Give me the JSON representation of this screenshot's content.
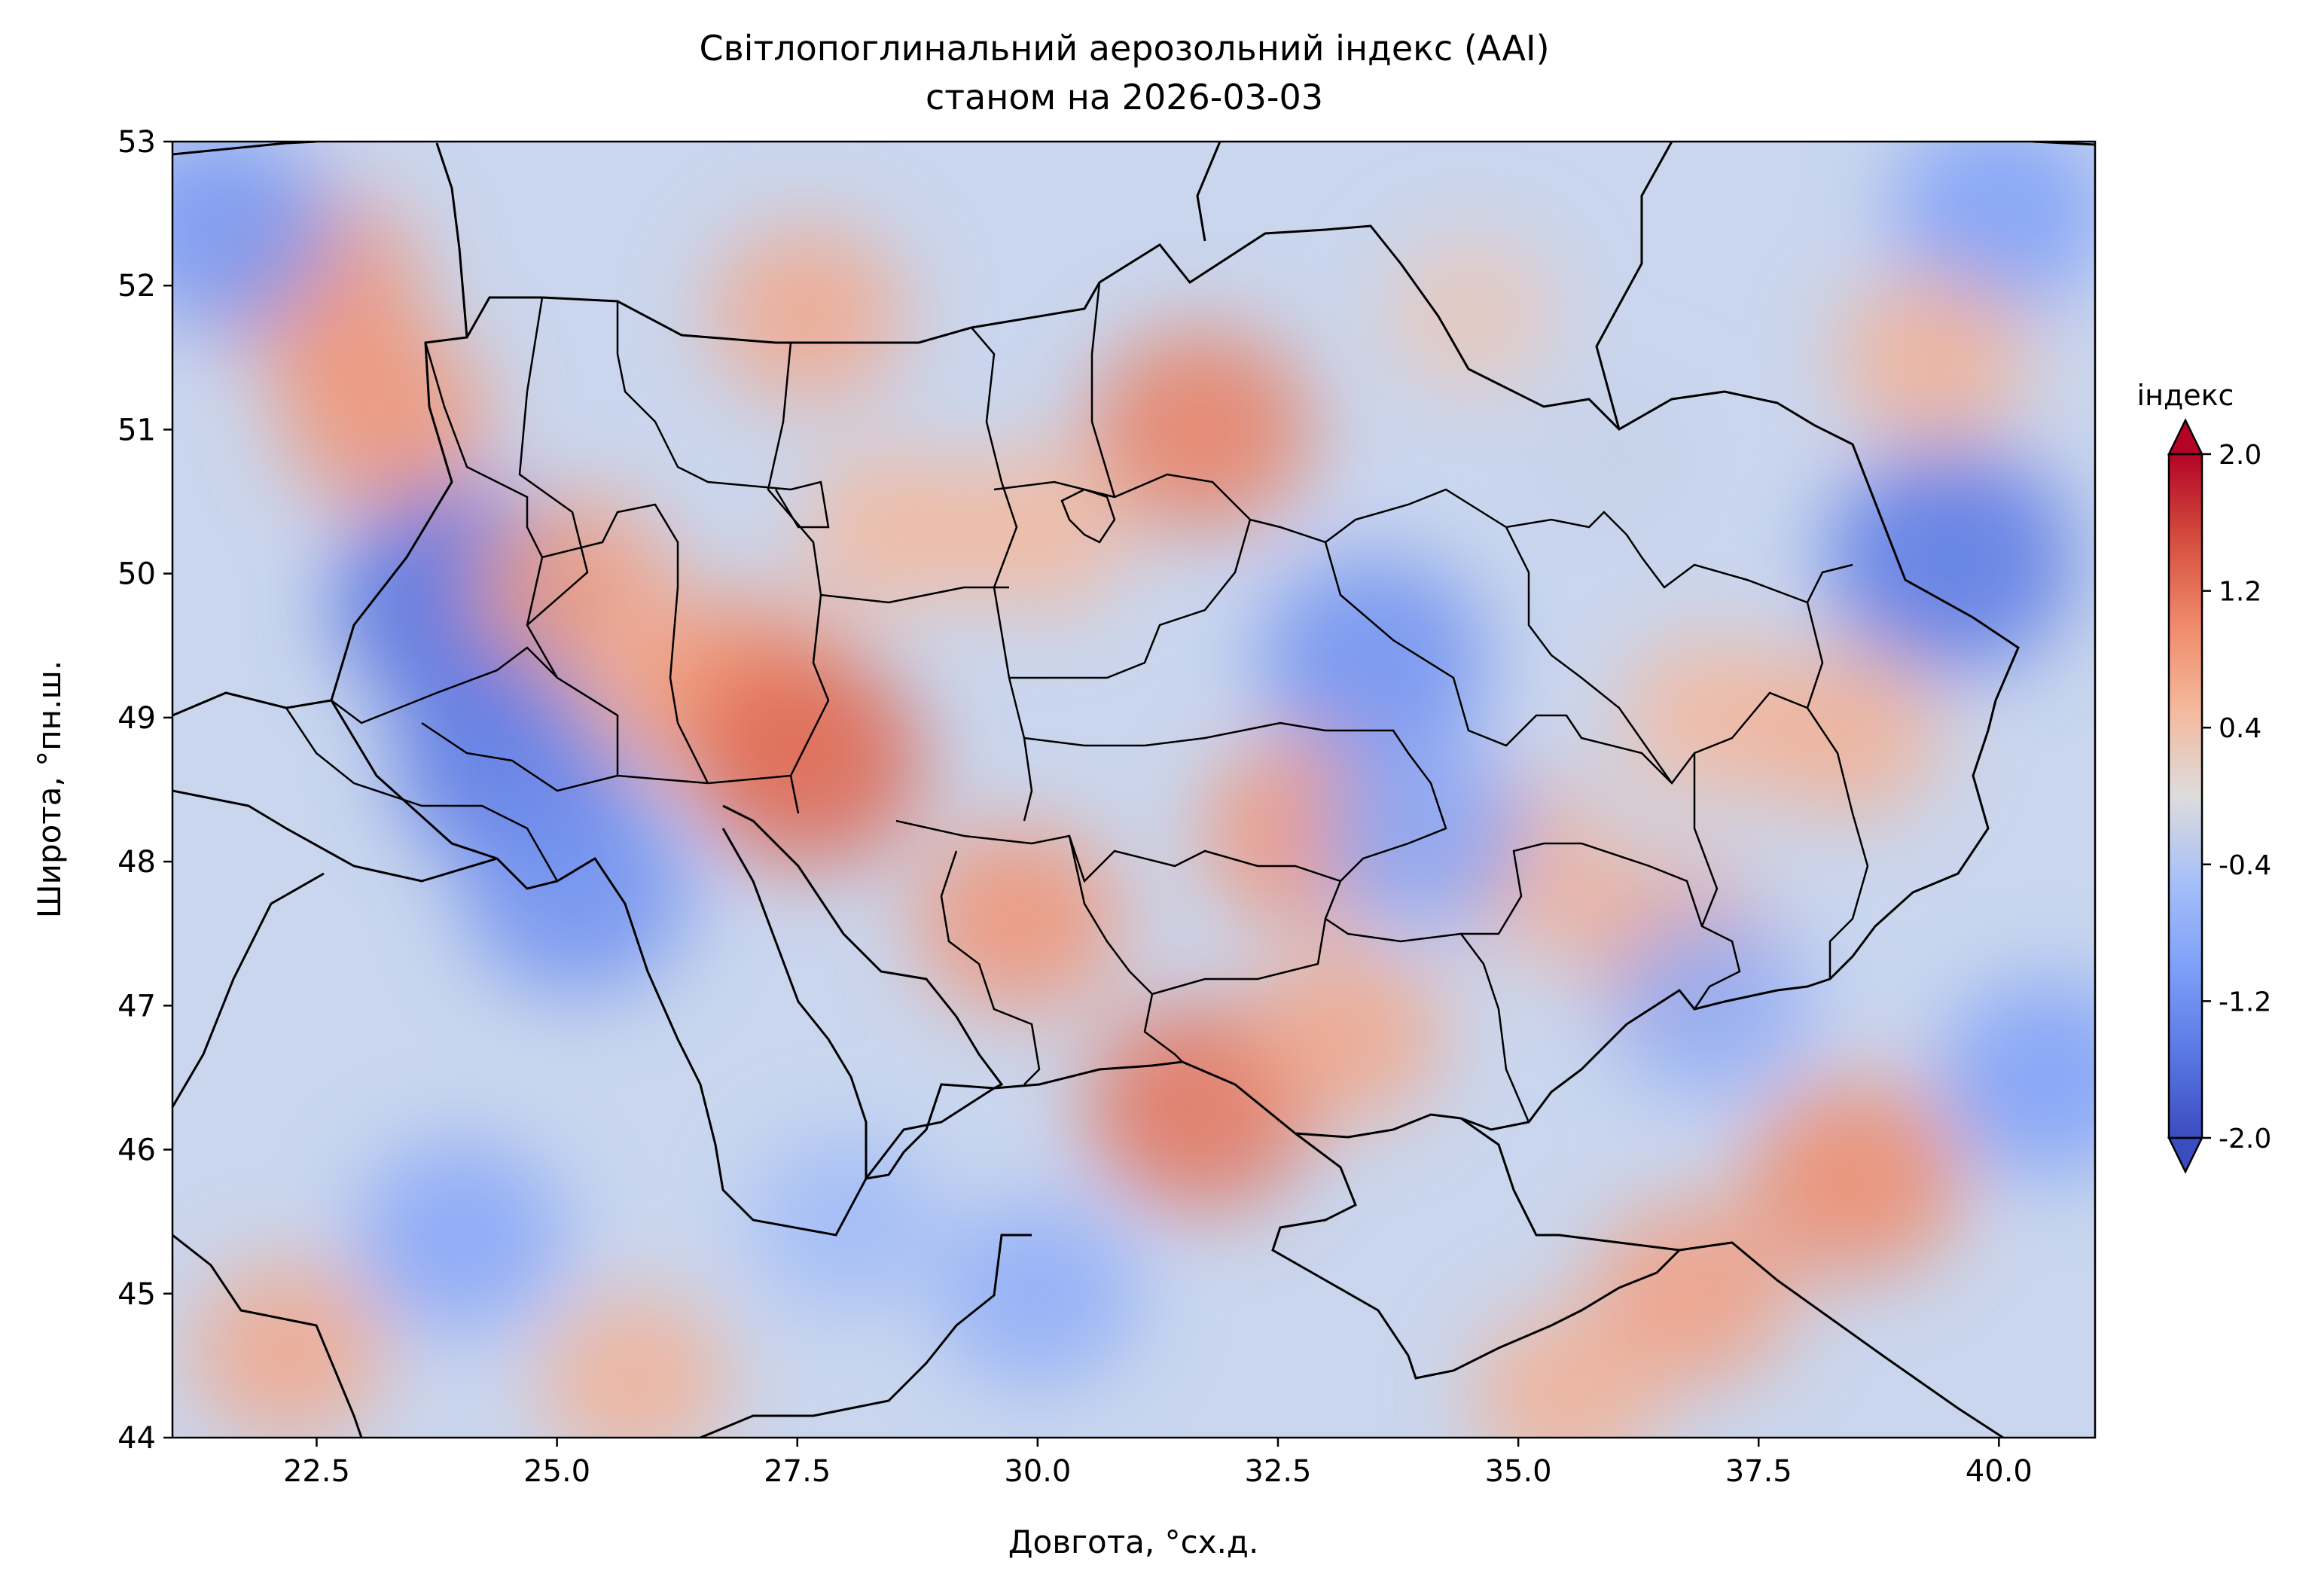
{
  "chart_data": {
    "type": "heatmap",
    "title": "Світлопоглинальний аерозольний індекс (AAI)",
    "subtitle": "станом на 2026-03-03",
    "xlabel": "Довгота, °сх.д.",
    "ylabel": "Широта, °пн.ш.",
    "xlim": [
      21.0,
      41.0
    ],
    "ylim": [
      44.0,
      53.0
    ],
    "x_ticks": [
      "22.5",
      "25.0",
      "27.5",
      "30.0",
      "32.5",
      "35.0",
      "37.5",
      "40.0"
    ],
    "y_ticks": [
      "44",
      "45",
      "46",
      "47",
      "48",
      "49",
      "50",
      "51",
      "52",
      "53"
    ],
    "colorbar": {
      "label": "індекс",
      "range": [
        -2.0,
        2.0
      ],
      "ticks": [
        "-2.0",
        "-1.2",
        "-0.4",
        "0.4",
        "1.2",
        "2.0"
      ],
      "colormap": "coolwarm",
      "extend": "both"
    },
    "field_samples": [
      {
        "lon": 22.5,
        "lat": 52.0,
        "value": 0.9
      },
      {
        "lon": 23.2,
        "lat": 51.1,
        "value": 0.9
      },
      {
        "lon": 21.5,
        "lat": 52.4,
        "value": -1.1
      },
      {
        "lon": 24.0,
        "lat": 49.8,
        "value": -1.6
      },
      {
        "lon": 24.6,
        "lat": 48.7,
        "value": -1.5
      },
      {
        "lon": 25.2,
        "lat": 47.8,
        "value": -1.2
      },
      {
        "lon": 25.2,
        "lat": 49.9,
        "value": 0.8
      },
      {
        "lon": 26.2,
        "lat": 49.2,
        "value": 0.6
      },
      {
        "lon": 27.0,
        "lat": 49.2,
        "value": 0.9
      },
      {
        "lon": 27.6,
        "lat": 48.7,
        "value": 1.3
      },
      {
        "lon": 28.5,
        "lat": 50.3,
        "value": 0.5
      },
      {
        "lon": 27.6,
        "lat": 51.8,
        "value": 0.7
      },
      {
        "lon": 31.7,
        "lat": 51.0,
        "value": 1.1
      },
      {
        "lon": 30.0,
        "lat": 50.3,
        "value": 0.5
      },
      {
        "lon": 33.5,
        "lat": 49.4,
        "value": -1.2
      },
      {
        "lon": 32.8,
        "lat": 48.2,
        "value": 0.9
      },
      {
        "lon": 29.8,
        "lat": 47.6,
        "value": 0.9
      },
      {
        "lon": 31.7,
        "lat": 46.3,
        "value": 1.2
      },
      {
        "lon": 33.2,
        "lat": 46.8,
        "value": 0.7
      },
      {
        "lon": 35.0,
        "lat": 48.0,
        "value": 0.6
      },
      {
        "lon": 34.0,
        "lat": 48.2,
        "value": -0.9
      },
      {
        "lon": 36.6,
        "lat": 47.4,
        "value": 0.7
      },
      {
        "lon": 37.0,
        "lat": 49.0,
        "value": 0.5
      },
      {
        "lon": 38.4,
        "lat": 48.9,
        "value": 0.6
      },
      {
        "lon": 39.5,
        "lat": 50.1,
        "value": -1.5
      },
      {
        "lon": 40.0,
        "lat": 52.5,
        "value": -1.0
      },
      {
        "lon": 39.3,
        "lat": 51.5,
        "value": 0.6
      },
      {
        "lon": 36.8,
        "lat": 45.0,
        "value": 0.8
      },
      {
        "lon": 38.5,
        "lat": 45.8,
        "value": 1.0
      },
      {
        "lon": 35.5,
        "lat": 44.3,
        "value": 0.6
      },
      {
        "lon": 37.0,
        "lat": 47.0,
        "value": -0.8
      },
      {
        "lon": 22.2,
        "lat": 44.6,
        "value": 0.7
      },
      {
        "lon": 25.8,
        "lat": 44.4,
        "value": 0.6
      },
      {
        "lon": 24.0,
        "lat": 45.4,
        "value": -0.9
      },
      {
        "lon": 28.0,
        "lat": 45.5,
        "value": -0.6
      },
      {
        "lon": 30.0,
        "lat": 45.0,
        "value": -0.8
      },
      {
        "lon": 40.5,
        "lat": 46.5,
        "value": -1.0
      },
      {
        "lon": 36.0,
        "lat": 50.8,
        "value": -0.2
      },
      {
        "lon": 34.5,
        "lat": 51.8,
        "value": 0.3
      }
    ]
  }
}
